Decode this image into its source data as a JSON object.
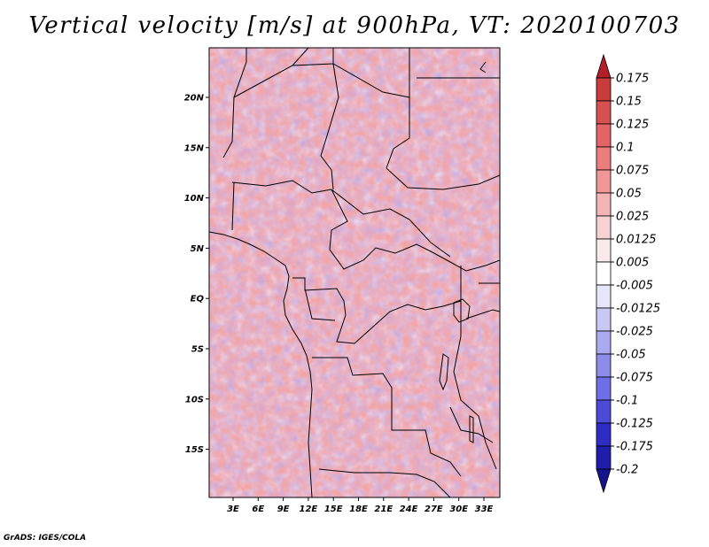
{
  "title": "Vertical velocity [m/s] at 900hPa, VT: 2020100703",
  "credit": "GrADS: IGES/COLA",
  "map": {
    "lat_labels": [
      "20N",
      "15N",
      "10N",
      "5N",
      "EQ",
      "5S",
      "10S",
      "15S"
    ],
    "lon_labels": [
      "3E",
      "6E",
      "9E",
      "12E",
      "15E",
      "18E",
      "21E",
      "24E",
      "27E",
      "30E",
      "33E"
    ]
  },
  "colorbar": {
    "levels": [
      "0.175",
      "0.15",
      "0.125",
      "0.1",
      "0.075",
      "0.05",
      "0.025",
      "0.0125",
      "0.005",
      "-0.005",
      "-0.0125",
      "-0.025",
      "-0.05",
      "-0.075",
      "-0.1",
      "-0.125",
      "-0.175",
      "-0.2"
    ],
    "colors": [
      "#b41e28",
      "#c83c3c",
      "#d75050",
      "#e36464",
      "#eb7d7d",
      "#f09696",
      "#f5b4b4",
      "#f8d2d2",
      "#fbeaea",
      "#ffffff",
      "#e6e6fa",
      "#c8c8f5",
      "#aaaaf0",
      "#8c8ceb",
      "#6e6ee6",
      "#4b4bd7",
      "#2d2dc3",
      "#1e1eaa",
      "#14148c"
    ]
  }
}
